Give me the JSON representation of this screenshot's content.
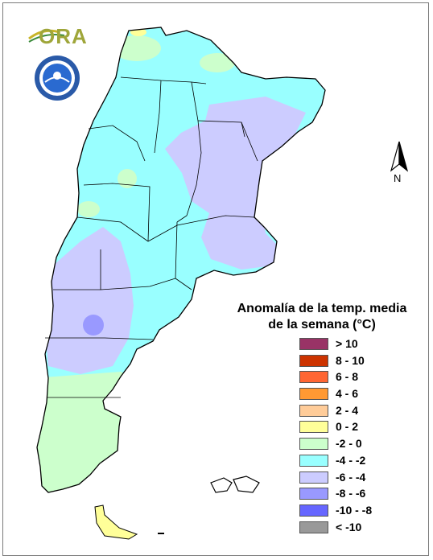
{
  "map": {
    "legend_title_line1": "Anomalía de la temp. media",
    "legend_title_line2": "de la semana (°C)",
    "north_label": "N",
    "logo_text": "ORA",
    "legend": [
      {
        "label": "> 10",
        "color": "#993366"
      },
      {
        "label": "8 - 10",
        "color": "#cc3300"
      },
      {
        "label": "6 - 8",
        "color": "#ff6633"
      },
      {
        "label": "4 - 6",
        "color": "#ff9933"
      },
      {
        "label": "2 - 4",
        "color": "#ffcc99"
      },
      {
        "label": "0 - 2",
        "color": "#ffff99"
      },
      {
        "label": "-2 - 0",
        "color": "#ccffcc"
      },
      {
        "label": "-4 - -2",
        "color": "#99ffff"
      },
      {
        "label": "-6 - -4",
        "color": "#ccccff"
      },
      {
        "label": "-8 - -6",
        "color": "#9999ff"
      },
      {
        "label": "-10 - -8",
        "color": "#6666ff"
      },
      {
        "label": "< -10",
        "color": "#999999"
      }
    ]
  }
}
